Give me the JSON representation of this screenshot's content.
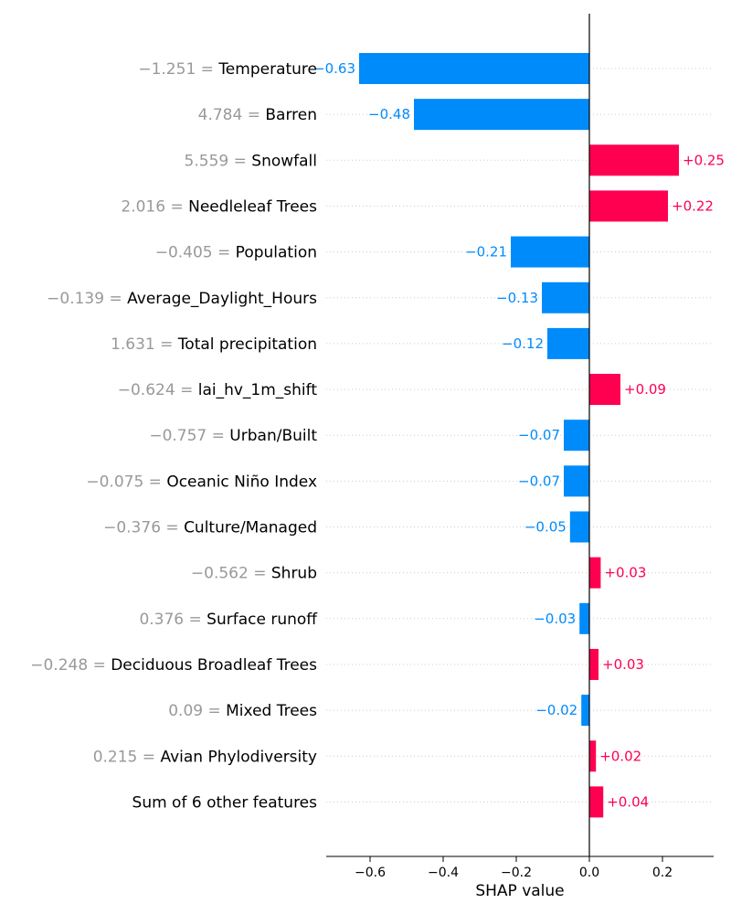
{
  "chart_data": {
    "type": "bar",
    "chart_kind": "shap-waterfall-bar",
    "xlabel": "SHAP value",
    "xlim": [
      -0.72,
      0.34
    ],
    "xticks": [
      -0.6,
      -0.4,
      -0.2,
      0.0,
      0.2
    ],
    "xtick_labels": [
      "−0.6",
      "−0.4",
      "−0.2",
      "0.0",
      "0.2"
    ],
    "grid": "dotted horizontal row guides",
    "colors": {
      "positive": "#ff0051",
      "negative": "#008bfb",
      "value_prefix": "#999999",
      "feature_name": "#000000",
      "axis": "#000000"
    },
    "rows": [
      {
        "value_text": "−1.251",
        "feature": "Temperature",
        "shap": -0.63,
        "label": "−0.63"
      },
      {
        "value_text": "4.784",
        "feature": "Barren",
        "shap": -0.48,
        "label": "−0.48"
      },
      {
        "value_text": "5.559",
        "feature": "Snowfall",
        "shap": 0.245,
        "label": "+0.25"
      },
      {
        "value_text": "2.016",
        "feature": "Needleleaf Trees",
        "shap": 0.215,
        "label": "+0.22"
      },
      {
        "value_text": "−0.405",
        "feature": "Population",
        "shap": -0.215,
        "label": "−0.21"
      },
      {
        "value_text": "−0.139",
        "feature": "Average_Daylight_Hours",
        "shap": -0.13,
        "label": "−0.13"
      },
      {
        "value_text": "1.631",
        "feature": "Total precipitation",
        "shap": -0.115,
        "label": "−0.12"
      },
      {
        "value_text": "−0.624",
        "feature": "lai_hv_1m_shift",
        "shap": 0.085,
        "label": "+0.09"
      },
      {
        "value_text": "−0.757",
        "feature": "Urban/Built",
        "shap": -0.07,
        "label": "−0.07"
      },
      {
        "value_text": "−0.075",
        "feature": "Oceanic Niño Index",
        "shap": -0.07,
        "label": "−0.07"
      },
      {
        "value_text": "−0.376",
        "feature": "Culture/Managed",
        "shap": -0.053,
        "label": "−0.05"
      },
      {
        "value_text": "−0.562",
        "feature": "Shrub",
        "shap": 0.031,
        "label": "+0.03"
      },
      {
        "value_text": "0.376",
        "feature": "Surface runoff",
        "shap": -0.027,
        "label": "−0.03"
      },
      {
        "value_text": "−0.248",
        "feature": "Deciduous Broadleaf Trees",
        "shap": 0.025,
        "label": "+0.03"
      },
      {
        "value_text": "0.09",
        "feature": "Mixed Trees",
        "shap": -0.022,
        "label": "−0.02"
      },
      {
        "value_text": "0.215",
        "feature": "Avian Phylodiversity",
        "shap": 0.018,
        "label": "+0.02"
      },
      {
        "value_text": "",
        "feature": "Sum of 6 other features",
        "shap": 0.038,
        "label": "+0.04"
      }
    ]
  }
}
